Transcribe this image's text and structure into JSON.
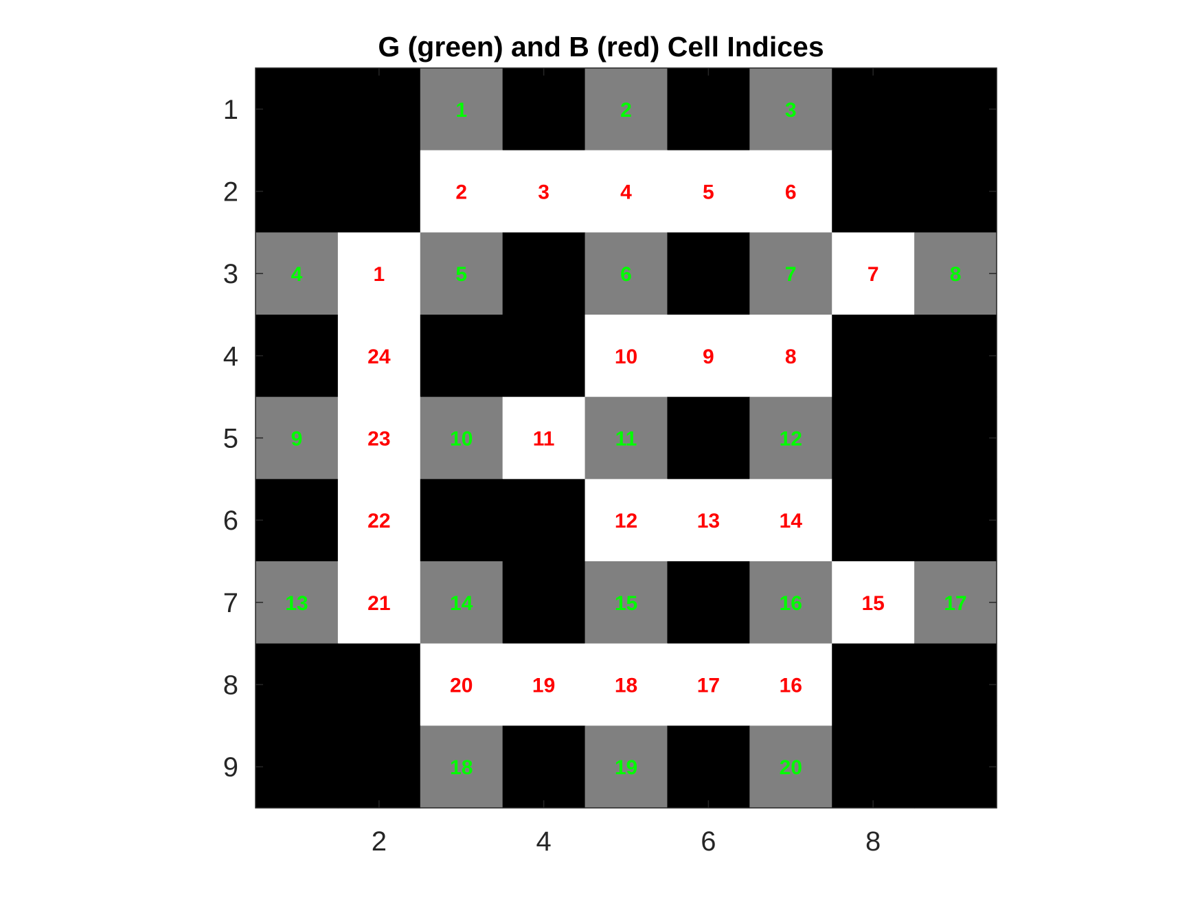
{
  "chart_data": {
    "type": "heatmap",
    "title": "G (green) and B (red) Cell Indices",
    "xlabel": "",
    "ylabel": "",
    "xlim": [
      0.5,
      9.5
    ],
    "ylim": [
      0.5,
      9.5
    ],
    "y_reversed": true,
    "x_ticks": [
      2,
      4,
      6,
      8
    ],
    "y_ticks": [
      1,
      2,
      3,
      4,
      5,
      6,
      7,
      8,
      9
    ],
    "grid": false,
    "legend": "none",
    "colors": {
      "black": "#000000",
      "gray": "#808080",
      "white": "#ffffff",
      "green_text": "#00ff00",
      "red_text": "#ff0000",
      "axis": "#262626"
    },
    "grid_values": [
      [
        "black",
        "black",
        "gray",
        "black",
        "gray",
        "black",
        "gray",
        "black",
        "black"
      ],
      [
        "black",
        "black",
        "white",
        "white",
        "white",
        "white",
        "white",
        "black",
        "black"
      ],
      [
        "gray",
        "white",
        "gray",
        "black",
        "gray",
        "black",
        "gray",
        "white",
        "gray"
      ],
      [
        "black",
        "white",
        "black",
        "black",
        "white",
        "white",
        "white",
        "black",
        "black"
      ],
      [
        "gray",
        "white",
        "gray",
        "white",
        "gray",
        "black",
        "gray",
        "black",
        "black"
      ],
      [
        "black",
        "white",
        "black",
        "black",
        "white",
        "white",
        "white",
        "black",
        "black"
      ],
      [
        "gray",
        "white",
        "gray",
        "black",
        "gray",
        "black",
        "gray",
        "white",
        "gray"
      ],
      [
        "black",
        "black",
        "white",
        "white",
        "white",
        "white",
        "white",
        "black",
        "black"
      ],
      [
        "black",
        "black",
        "gray",
        "black",
        "gray",
        "black",
        "gray",
        "black",
        "black"
      ]
    ],
    "g_cells": [
      {
        "row": 1,
        "col": 3,
        "label": "1"
      },
      {
        "row": 1,
        "col": 5,
        "label": "2"
      },
      {
        "row": 1,
        "col": 7,
        "label": "3"
      },
      {
        "row": 3,
        "col": 1,
        "label": "4"
      },
      {
        "row": 3,
        "col": 3,
        "label": "5"
      },
      {
        "row": 3,
        "col": 5,
        "label": "6"
      },
      {
        "row": 3,
        "col": 7,
        "label": "7"
      },
      {
        "row": 3,
        "col": 9,
        "label": "8"
      },
      {
        "row": 5,
        "col": 1,
        "label": "9"
      },
      {
        "row": 5,
        "col": 3,
        "label": "10"
      },
      {
        "row": 5,
        "col": 5,
        "label": "11"
      },
      {
        "row": 5,
        "col": 7,
        "label": "12"
      },
      {
        "row": 7,
        "col": 1,
        "label": "13"
      },
      {
        "row": 7,
        "col": 3,
        "label": "14"
      },
      {
        "row": 7,
        "col": 5,
        "label": "15"
      },
      {
        "row": 7,
        "col": 7,
        "label": "16"
      },
      {
        "row": 7,
        "col": 9,
        "label": "17"
      },
      {
        "row": 9,
        "col": 3,
        "label": "18"
      },
      {
        "row": 9,
        "col": 5,
        "label": "19"
      },
      {
        "row": 9,
        "col": 7,
        "label": "20"
      }
    ],
    "b_cells": [
      {
        "row": 3,
        "col": 2,
        "label": "1"
      },
      {
        "row": 2,
        "col": 3,
        "label": "2"
      },
      {
        "row": 2,
        "col": 4,
        "label": "3"
      },
      {
        "row": 2,
        "col": 5,
        "label": "4"
      },
      {
        "row": 2,
        "col": 6,
        "label": "5"
      },
      {
        "row": 2,
        "col": 7,
        "label": "6"
      },
      {
        "row": 3,
        "col": 8,
        "label": "7"
      },
      {
        "row": 4,
        "col": 7,
        "label": "8"
      },
      {
        "row": 4,
        "col": 6,
        "label": "9"
      },
      {
        "row": 4,
        "col": 5,
        "label": "10"
      },
      {
        "row": 5,
        "col": 4,
        "label": "11"
      },
      {
        "row": 6,
        "col": 5,
        "label": "12"
      },
      {
        "row": 6,
        "col": 6,
        "label": "13"
      },
      {
        "row": 6,
        "col": 7,
        "label": "14"
      },
      {
        "row": 7,
        "col": 8,
        "label": "15"
      },
      {
        "row": 8,
        "col": 7,
        "label": "16"
      },
      {
        "row": 8,
        "col": 6,
        "label": "17"
      },
      {
        "row": 8,
        "col": 5,
        "label": "18"
      },
      {
        "row": 8,
        "col": 4,
        "label": "19"
      },
      {
        "row": 8,
        "col": 3,
        "label": "20"
      },
      {
        "row": 7,
        "col": 2,
        "label": "21"
      },
      {
        "row": 6,
        "col": 2,
        "label": "22"
      },
      {
        "row": 5,
        "col": 2,
        "label": "23"
      },
      {
        "row": 4,
        "col": 2,
        "label": "24"
      }
    ]
  }
}
